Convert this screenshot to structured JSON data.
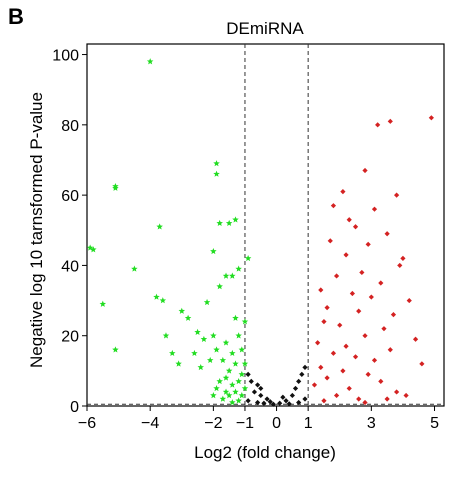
{
  "panel_label": "B",
  "chart_data": {
    "type": "scatter",
    "title": "DEmiRNA",
    "xlabel": "Log2 (fold change)",
    "ylabel": "Negative log 10 tarnsformed P-value",
    "xlim": [
      -6,
      5.3
    ],
    "ylim": [
      0,
      103
    ],
    "x_ticks": [
      -6,
      -4,
      -2,
      -1,
      0,
      1,
      3,
      5
    ],
    "y_ticks": [
      0,
      20,
      40,
      60,
      80,
      100
    ],
    "threshold_lines": {
      "x": [
        -1,
        1
      ],
      "y": [
        0.5
      ]
    },
    "grid": false,
    "legend": "none",
    "series": [
      {
        "color": "#22dd22",
        "marker": "star",
        "points": [
          [
            -4.0,
            98
          ],
          [
            -5.1,
            62.5
          ],
          [
            -5.1,
            62
          ],
          [
            -1.9,
            69
          ],
          [
            -1.9,
            66
          ],
          [
            -3.7,
            51
          ],
          [
            -1.3,
            53
          ],
          [
            -1.8,
            52
          ],
          [
            -1.5,
            52
          ],
          [
            -5.9,
            45
          ],
          [
            -5.8,
            44.5
          ],
          [
            -4.5,
            39
          ],
          [
            -2.0,
            44
          ],
          [
            -1.2,
            39
          ],
          [
            -0.9,
            42
          ],
          [
            -1.6,
            37
          ],
          [
            -1.8,
            34
          ],
          [
            -1.4,
            37
          ],
          [
            -5.5,
            29
          ],
          [
            -3.8,
            31
          ],
          [
            -3.6,
            30
          ],
          [
            -2.2,
            29.5
          ],
          [
            -3.0,
            27
          ],
          [
            -2.8,
            25
          ],
          [
            -2.5,
            21
          ],
          [
            -1.0,
            24
          ],
          [
            -1.3,
            25
          ],
          [
            -1.2,
            20
          ],
          [
            -3.5,
            20
          ],
          [
            -2.0,
            20
          ],
          [
            -2.3,
            19
          ],
          [
            -1.6,
            18
          ],
          [
            -1.9,
            16
          ],
          [
            -5.1,
            16
          ],
          [
            -3.3,
            15
          ],
          [
            -2.6,
            15
          ],
          [
            -1.4,
            15
          ],
          [
            -1.1,
            16
          ],
          [
            -2.1,
            13
          ],
          [
            -1.7,
            13
          ],
          [
            -1.3,
            12
          ],
          [
            -1.0,
            12
          ],
          [
            -2.4,
            11
          ],
          [
            -3.1,
            12
          ],
          [
            -1.5,
            10
          ],
          [
            -1.1,
            9
          ],
          [
            -1.2,
            7
          ],
          [
            -1.4,
            6
          ],
          [
            -1.6,
            8
          ],
          [
            -1.8,
            7
          ],
          [
            -1.9,
            5
          ],
          [
            -1.3,
            4
          ],
          [
            -1.1,
            3
          ],
          [
            -1.5,
            3
          ],
          [
            -1.7,
            2
          ],
          [
            -1.2,
            1.5
          ],
          [
            -2.0,
            3
          ],
          [
            -1.0,
            5
          ],
          [
            -1.4,
            1
          ],
          [
            -1.6,
            4
          ]
        ]
      },
      {
        "color": "#111111",
        "marker": "diamond",
        "points": [
          [
            -0.9,
            9
          ],
          [
            -0.8,
            7
          ],
          [
            -0.6,
            6
          ],
          [
            -0.7,
            4
          ],
          [
            -0.5,
            3
          ],
          [
            -0.3,
            2
          ],
          [
            -0.9,
            1.5
          ],
          [
            -0.6,
            1
          ],
          [
            -0.4,
            0.8
          ],
          [
            -0.2,
            1.2
          ],
          [
            0.1,
            0.8
          ],
          [
            0.3,
            1.5
          ],
          [
            0.5,
            3
          ],
          [
            0.6,
            5
          ],
          [
            0.7,
            7
          ],
          [
            0.8,
            9
          ],
          [
            0.9,
            11
          ],
          [
            0.9,
            2
          ],
          [
            0.4,
            0.6
          ],
          [
            -0.1,
            0.5
          ],
          [
            0.2,
            2.5
          ],
          [
            -0.5,
            5
          ],
          [
            0.7,
            1
          ]
        ]
      },
      {
        "color": "#d42222",
        "marker": "diamond",
        "points": [
          [
            4.9,
            82
          ],
          [
            3.6,
            81
          ],
          [
            3.2,
            80
          ],
          [
            2.8,
            67
          ],
          [
            2.1,
            61
          ],
          [
            3.8,
            60
          ],
          [
            1.8,
            57
          ],
          [
            3.1,
            56
          ],
          [
            2.3,
            53
          ],
          [
            2.5,
            51
          ],
          [
            3.5,
            49
          ],
          [
            1.7,
            47
          ],
          [
            2.9,
            46
          ],
          [
            2.2,
            43
          ],
          [
            4.0,
            42
          ],
          [
            3.9,
            40
          ],
          [
            2.7,
            38
          ],
          [
            1.9,
            37
          ],
          [
            3.3,
            35
          ],
          [
            1.4,
            33
          ],
          [
            2.4,
            32
          ],
          [
            3.0,
            31
          ],
          [
            4.2,
            30
          ],
          [
            1.6,
            28
          ],
          [
            2.6,
            27
          ],
          [
            3.7,
            26
          ],
          [
            1.5,
            24
          ],
          [
            2.0,
            23
          ],
          [
            3.4,
            22
          ],
          [
            2.8,
            20
          ],
          [
            4.4,
            19
          ],
          [
            1.3,
            18
          ],
          [
            2.2,
            17
          ],
          [
            3.6,
            16
          ],
          [
            1.8,
            15
          ],
          [
            2.5,
            14
          ],
          [
            3.1,
            13
          ],
          [
            4.6,
            12
          ],
          [
            1.4,
            11
          ],
          [
            2.1,
            10
          ],
          [
            2.9,
            9
          ],
          [
            1.6,
            8
          ],
          [
            3.3,
            7
          ],
          [
            1.2,
            6
          ],
          [
            2.3,
            5
          ],
          [
            3.8,
            4
          ],
          [
            1.9,
            3
          ],
          [
            2.6,
            2
          ],
          [
            4.1,
            3
          ],
          [
            1.5,
            1.5
          ],
          [
            2.8,
            1
          ],
          [
            3.5,
            2
          ]
        ]
      }
    ]
  }
}
